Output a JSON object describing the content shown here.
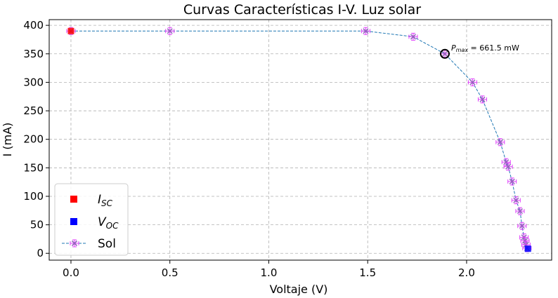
{
  "chart_data": {
    "type": "scatter",
    "title": "Curvas Características I-V. Luz solar",
    "xlabel": "Voltaje (V)",
    "ylabel": "I (mA)",
    "xlim": [
      -0.11,
      2.43
    ],
    "ylim": [
      -12,
      410
    ],
    "xticks": [
      0.0,
      0.5,
      1.0,
      1.5,
      2.0
    ],
    "xtick_labels": [
      "0.0",
      "0.5",
      "1.0",
      "1.5",
      "2.0"
    ],
    "yticks": [
      0,
      50,
      100,
      150,
      200,
      250,
      300,
      350,
      400
    ],
    "ytick_labels": [
      "0",
      "50",
      "100",
      "150",
      "200",
      "250",
      "300",
      "350",
      "400"
    ],
    "grid": true,
    "legend_position": "lower-left",
    "series": [
      {
        "name": "Sol",
        "color": "#1f77b4",
        "marker_color": "#9467bd",
        "errorbar_color": "#e040fb",
        "line_style": "dashed",
        "x": [
          0.0,
          0.5,
          1.49,
          1.73,
          1.89,
          2.03,
          2.08,
          2.17,
          2.2,
          2.21,
          2.23,
          2.25,
          2.27,
          2.28,
          2.29,
          2.295,
          2.3,
          2.305
        ],
        "y": [
          390,
          390,
          390,
          380,
          350,
          300,
          270,
          195,
          160,
          152,
          126,
          93,
          74,
          48,
          28,
          22,
          15,
          9
        ]
      }
    ],
    "points": [
      {
        "name": "I_SC",
        "legend_main": "I",
        "legend_sub": "SC",
        "x": 0.0,
        "y": 390,
        "color": "#ff0000"
      },
      {
        "name": "V_OC",
        "legend_main": "V",
        "legend_sub": "OC",
        "x": 2.31,
        "y": 8,
        "color": "#0000ff"
      }
    ],
    "annotation": {
      "label_main": "P",
      "label_sub": "max",
      "label_value": " = 661.5 mW",
      "x": 1.89,
      "y": 350
    }
  }
}
